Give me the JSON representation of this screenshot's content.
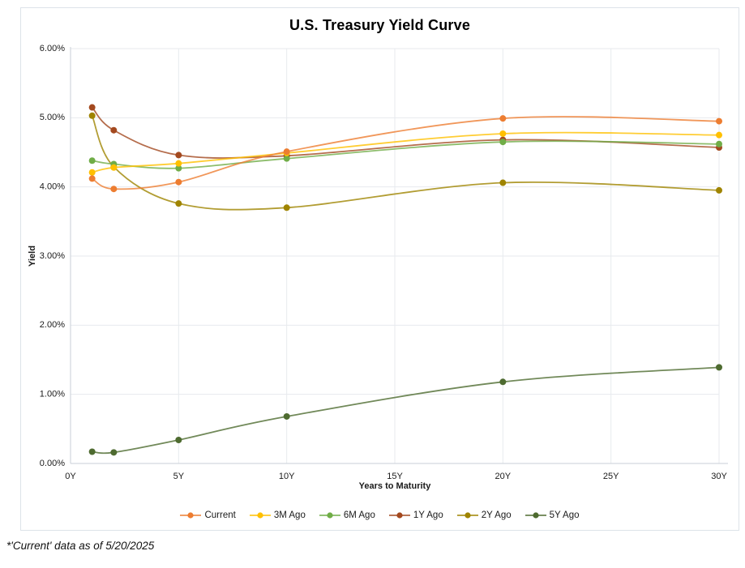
{
  "chart_data": {
    "type": "line",
    "title": "U.S. Treasury Yield Curve",
    "xlabel": "Years to Maturity",
    "ylabel": "Yield",
    "footnote": "*'Current' data as of 5/20/2025",
    "xlim": [
      0,
      30
    ],
    "ylim": [
      0,
      6
    ],
    "grid": true,
    "legend_position": "bottom",
    "x_tick_years": [
      0,
      5,
      10,
      15,
      20,
      25,
      30
    ],
    "x_tick_labels": [
      "0Y",
      "5Y",
      "10Y",
      "15Y",
      "20Y",
      "25Y",
      "30Y"
    ],
    "y_tick_values": [
      0,
      1,
      2,
      3,
      4,
      5,
      6
    ],
    "y_tick_labels": [
      "0.00%",
      "1.00%",
      "2.00%",
      "3.00%",
      "4.00%",
      "5.00%",
      "6.00%"
    ],
    "x_years": [
      1,
      2,
      5,
      10,
      20,
      30
    ],
    "series": [
      {
        "name": "Current",
        "color": "#ED7D31",
        "values": [
          4.12,
          3.97,
          4.07,
          4.51,
          4.99,
          4.95
        ]
      },
      {
        "name": "3M Ago",
        "color": "#FFC000",
        "values": [
          4.21,
          4.28,
          4.34,
          4.49,
          4.77,
          4.75
        ]
      },
      {
        "name": "6M Ago",
        "color": "#70AD47",
        "values": [
          4.38,
          4.33,
          4.27,
          4.41,
          4.65,
          4.62
        ]
      },
      {
        "name": "1Y Ago",
        "color": "#A3491F",
        "values": [
          5.15,
          4.82,
          4.46,
          4.45,
          4.68,
          4.57
        ]
      },
      {
        "name": "2Y Ago",
        "color": "#9F8400",
        "values": [
          5.03,
          4.29,
          3.76,
          3.7,
          4.06,
          3.95
        ]
      },
      {
        "name": "5Y Ago",
        "color": "#4E6B30",
        "values": [
          0.17,
          0.16,
          0.34,
          0.68,
          1.18,
          1.39
        ]
      }
    ],
    "draw_order": [
      "5Y Ago",
      "2Y Ago",
      "1Y Ago",
      "6M Ago",
      "3M Ago",
      "Current"
    ],
    "colors": {
      "grid": "#E7EAEE",
      "axis": "#C9CFD7",
      "panel_border": "#DDE3E9",
      "text": "#1A1A1A"
    }
  }
}
